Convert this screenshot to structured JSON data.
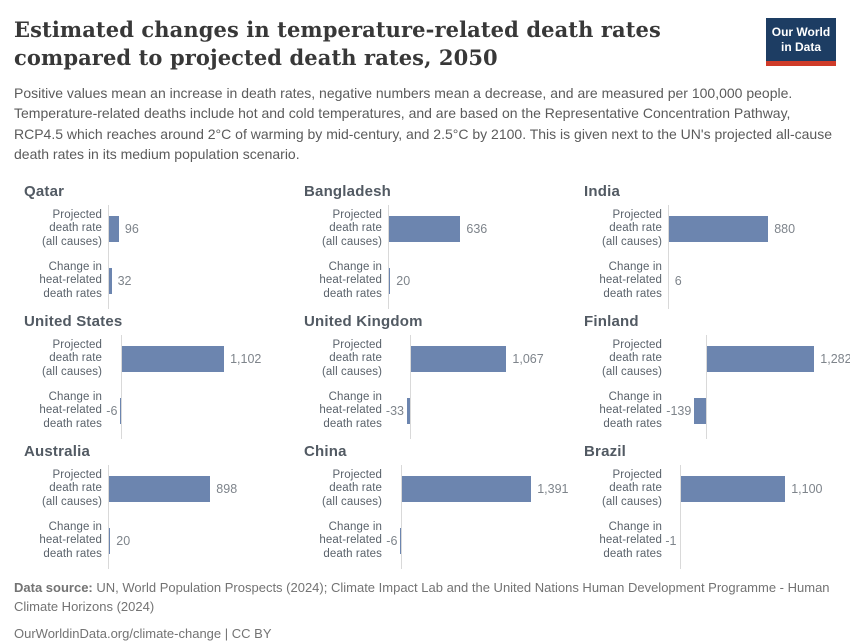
{
  "logo": {
    "line1": "Our World",
    "line2": "in Data"
  },
  "header": {
    "title": "Estimated changes in temperature-related death rates compared to projected death rates, 2050",
    "subtitle": "Positive values mean an increase in death rates, negative numbers mean a decrease, and are measured per 100,000 people. Temperature-related deaths include hot and cold temperatures, and are based on the Representative Concentration Pathway, RCP4.5 which reaches around 2°C of warming by mid-century, and 2.5°C by 2100. This is given next to the UN's projected all-cause death rates in its medium population scenario."
  },
  "chart_data": {
    "type": "bar",
    "orientation": "horizontal",
    "unit": "per 100,000 people",
    "year": "2050",
    "grid": false,
    "legend_position": "none",
    "bar_color": "#6c85af",
    "axis_color": "#d9d9d9",
    "categories": [
      "Projected death rate (all causes)",
      "Change in heat-related death rates"
    ],
    "category_lines": [
      [
        "Projected",
        "death rate",
        "(all causes)"
      ],
      [
        "Change in",
        "heat-related",
        "death rates"
      ]
    ],
    "facets": [
      {
        "country": "Qatar",
        "values": [
          96,
          32
        ],
        "labels": [
          "96",
          "32"
        ],
        "xmax": 1150
      },
      {
        "country": "Bangladesh",
        "values": [
          636,
          20
        ],
        "labels": [
          "636",
          "20"
        ],
        "xmax": 1150
      },
      {
        "country": "India",
        "values": [
          880,
          6
        ],
        "labels": [
          "880",
          "6"
        ],
        "xmax": 1150
      },
      {
        "country": "United States",
        "values": [
          1102,
          -6
        ],
        "labels": [
          "1,102",
          "-6"
        ],
        "xmax": 1400
      },
      {
        "country": "United Kingdom",
        "values": [
          1067,
          -33
        ],
        "labels": [
          "1,067",
          "-33"
        ],
        "xmax": 1450
      },
      {
        "country": "Finland",
        "values": [
          1282,
          -139
        ],
        "labels": [
          "1,282",
          "-139"
        ],
        "xmax": 1550
      },
      {
        "country": "Australia",
        "values": [
          898,
          20
        ],
        "labels": [
          "898",
          "20"
        ],
        "xmax": 1150
      },
      {
        "country": "China",
        "values": [
          1391,
          -6
        ],
        "labels": [
          "1,391",
          "-6"
        ],
        "xmax": 1400
      },
      {
        "country": "Brazil",
        "values": [
          1100,
          -1
        ],
        "labels": [
          "1,100",
          "-1"
        ],
        "xmax": 1370
      }
    ]
  },
  "footer": {
    "source_label": "Data source:",
    "source_text": "UN, World Population Prospects (2024); Climate Impact Lab and the United Nations Human Development Programme - Human Climate Horizons (2024)",
    "link_text": "OurWorldinData.org/climate-change",
    "separator": "|",
    "license": "CC BY"
  }
}
